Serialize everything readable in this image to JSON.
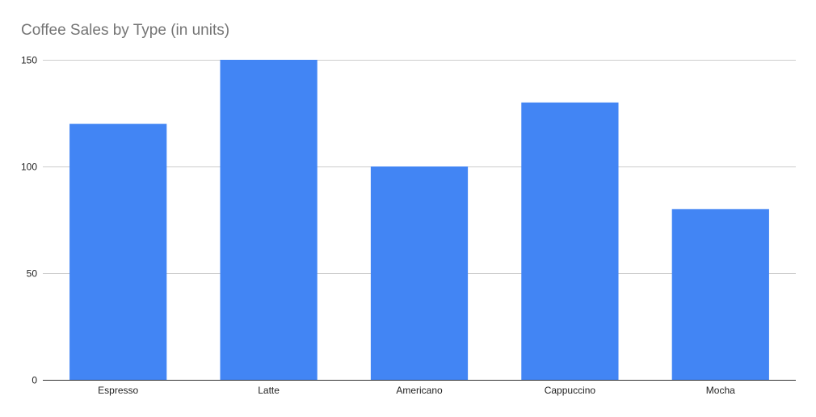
{
  "chart_data": {
    "type": "bar",
    "title": "Coffee Sales by Type (in units)",
    "xlabel": "",
    "ylabel": "",
    "categories": [
      "Espresso",
      "Latte",
      "Americano",
      "Cappuccino",
      "Mocha"
    ],
    "values": [
      120,
      150,
      100,
      130,
      80
    ],
    "ylim": [
      0,
      150
    ],
    "yticks": [
      0,
      50,
      100,
      150
    ],
    "grid": true,
    "legend": "none",
    "bar_color": "#4285f4",
    "grid_color": "#cccccc",
    "axis_color": "#333333"
  }
}
